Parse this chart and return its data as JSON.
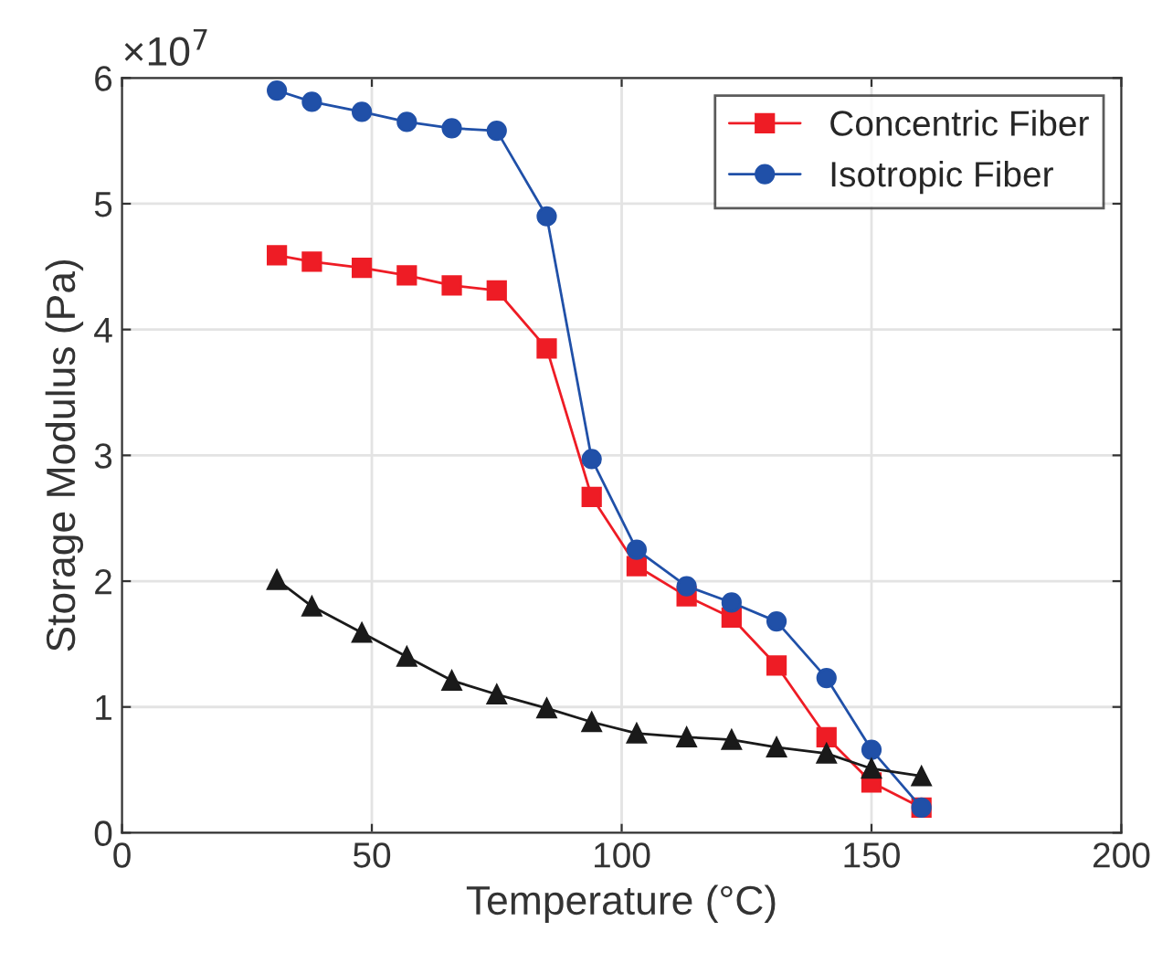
{
  "chart_data": {
    "type": "line",
    "xlabel": "Temperature (°C)",
    "ylabel": "Storage Modulus (Pa)",
    "x": [
      31,
      38,
      48,
      57,
      66,
      75,
      85,
      94,
      103,
      113,
      122,
      131,
      141,
      150,
      160
    ],
    "series": [
      {
        "name": "Concentric Fiber",
        "color": "#ee1c25",
        "marker": "square",
        "values": [
          4.59,
          4.54,
          4.49,
          4.43,
          4.35,
          4.31,
          3.85,
          2.67,
          2.12,
          1.88,
          1.71,
          1.33,
          0.76,
          0.4,
          0.2
        ]
      },
      {
        "name": "Isotropic Fiber",
        "color": "#2050a8",
        "marker": "circle",
        "values": [
          5.9,
          5.81,
          5.73,
          5.65,
          5.6,
          5.58,
          4.9,
          2.97,
          2.25,
          1.96,
          1.83,
          1.68,
          1.23,
          0.66,
          0.2
        ]
      },
      {
        "color": "#1a1a1a",
        "marker": "triangle",
        "values": [
          2.01,
          1.8,
          1.59,
          1.4,
          1.21,
          1.1,
          0.99,
          0.88,
          0.79,
          0.76,
          0.74,
          0.68,
          0.63,
          0.51,
          0.45
        ]
      }
    ],
    "xlim": [
      0,
      200
    ],
    "xticks": [
      0,
      50,
      100,
      150,
      200
    ],
    "ylim": [
      0,
      6
    ],
    "yticks": [
      0,
      1,
      2,
      3,
      4,
      5,
      6
    ],
    "annotations": [
      "×10$^{7}$"
    ],
    "grid": true,
    "legend": "top right",
    "line_style": "solid"
  }
}
